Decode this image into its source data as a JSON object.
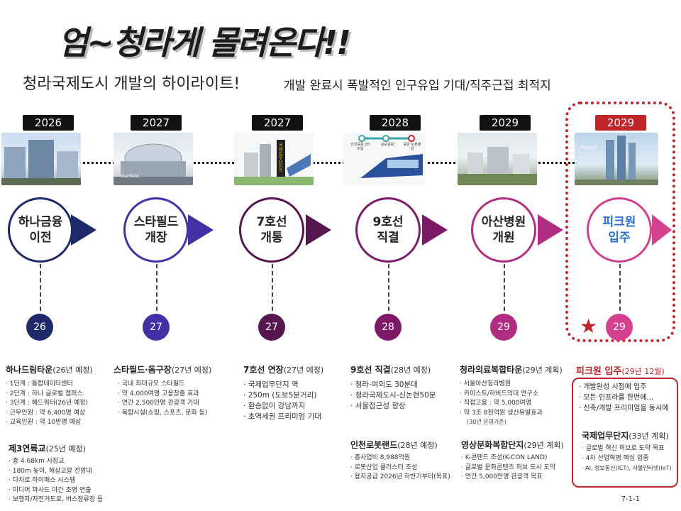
{
  "title": "엄~청라게 몰려온다!!",
  "subtitle": "청라국제도시 개발의 하이라이트!",
  "subtitle_desc": "개발 완료시 폭발적인 인구유입 기대/직주근접 최적지",
  "colors": {
    "c1": "#1f2a6b",
    "c2": "#4330a6",
    "c3": "#55154e",
    "c4": "#7e1968",
    "c5": "#b02d83",
    "c6": "#d4408e",
    "red": "#c0252a"
  },
  "timeline": [
    {
      "year": "2026",
      "label_l1": "하나금융",
      "label_l2": "이전",
      "num": "26"
    },
    {
      "year": "2027",
      "label_l1": "스타필드",
      "label_l2": "개장",
      "num": "27"
    },
    {
      "year": "2027",
      "label_l1": "7호선",
      "label_l2": "개통",
      "num": "27"
    },
    {
      "year": "2028",
      "label_l1": "9호선",
      "label_l2": "직결",
      "num": "28"
    },
    {
      "year": "2029",
      "label_l1": "아산병원",
      "label_l2": "개원",
      "num": "29"
    },
    {
      "year": "2029",
      "label_l1": "피크원",
      "label_l2": "입주",
      "num": "29"
    }
  ],
  "photo_captions": {
    "p3_sign": "국제업무단지역",
    "p4_stations": [
      "인천공항 2터미널",
      "김포공항",
      "중앙 보훈병원"
    ],
    "p2_brand": "Starfield",
    "p6_brand": "PRUGIO"
  },
  "details": {
    "c1": {
      "head": "하나드림타운",
      "sub": "(26년 예정)",
      "items": [
        "1단계 : 통합데이터센터",
        "2단계 : 하나 글로벌 캠퍼스",
        "3단계 : 헤드쿼터(26년 예정)",
        "근무인원 : 약 6,400명 예상",
        "교육인원 : 약 10만명 예상"
      ]
    },
    "c1b": {
      "head": "제3연륙교",
      "sub": "(25년 예정)",
      "items": [
        "총 4.68km 사장교",
        "180m 높이, 해상교량 전망대",
        "다차로 하이패스 시스템",
        "미디어 파사드 야간 조명 연출",
        "보행자/자전거도로, 버스정류장 등"
      ]
    },
    "c2": {
      "head": "스타필드·돔구장",
      "sub": "(27년 예정)",
      "items": [
        "국내 최대규모 스타필드",
        "약 4,000여명 고용창출 효과",
        "연간 2,500만명 관광객 기대",
        "복합시설(쇼핑, 스포츠, 문화 등)"
      ]
    },
    "c3": {
      "head": "7호선 연장",
      "sub": "(27년 예정)",
      "items": [
        "국제업무단지 역",
        "250m (도보5분거리)",
        "환승없이 강남까지",
        "초역세권 프리미엄 기대"
      ]
    },
    "c4": {
      "head": "9호선 직결",
      "sub": "(28년 예정)",
      "items": [
        "청라-여의도 30분대",
        "청라국제도시-신논현50분",
        "서울접근성 향상"
      ]
    },
    "c4b": {
      "head": "인천로봇랜드",
      "sub": "(28년 예정)",
      "items": [
        "총사업비 8,988억원",
        "로봇산업 클러스터 조성",
        "용지공급 2026년 하반기부터(목표)"
      ]
    },
    "c5": {
      "head": "청라의료복합타운",
      "sub": "(29년 계획)",
      "items": [
        "서울아산청라병원",
        "카이스트/하버드의대 연구소",
        "직접고용 : 약 5,000여명",
        "약 3조 8천억원 생산유발효과"
      ],
      "note": "(30년 운영기준)"
    },
    "c5b": {
      "head": "영상문화복합단지",
      "sub": "(29년 계획)",
      "items": [
        "K-콘텐드 조성(K-CON LAND)",
        "글로벌 문화콘텐츠 허브 도시 도약",
        "연간 5,000만명 관광객 목표"
      ]
    },
    "c6": {
      "head": "피크원 입주",
      "sub": "(29년 12월)",
      "items": [
        "개발완성 시점에 입주",
        "모든 인프라를 한번에...",
        "신축/개발 프리미엄을 동시에"
      ]
    },
    "c6b": {
      "head": "국제업무단지",
      "sub": "(33년 계획)",
      "items": [
        "글로벌 혁신 허브로 도약 목표",
        "4차 산업혁명 핵심 업종",
        "AI, 정보통신(ICT), 사물인터넷(IoT)"
      ]
    }
  },
  "page_number": "7-1-1"
}
